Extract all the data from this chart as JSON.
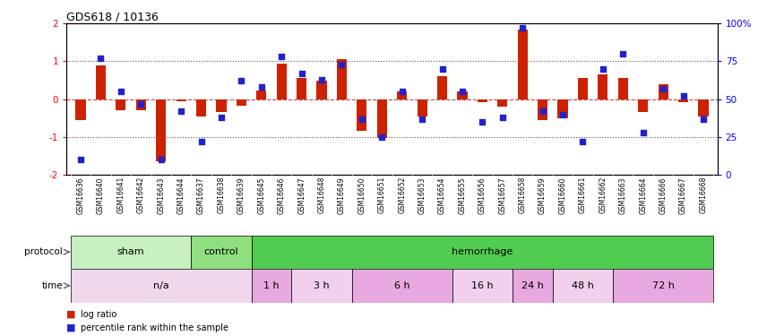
{
  "title": "GDS618 / 10136",
  "samples": [
    "GSM16636",
    "GSM16640",
    "GSM16641",
    "GSM16642",
    "GSM16643",
    "GSM16644",
    "GSM16637",
    "GSM16638",
    "GSM16639",
    "GSM16645",
    "GSM16646",
    "GSM16647",
    "GSM16648",
    "GSM16649",
    "GSM16650",
    "GSM16651",
    "GSM16652",
    "GSM16653",
    "GSM16654",
    "GSM16655",
    "GSM16656",
    "GSM16657",
    "GSM16658",
    "GSM16659",
    "GSM16660",
    "GSM16661",
    "GSM16662",
    "GSM16663",
    "GSM16664",
    "GSM16666",
    "GSM16667",
    "GSM16668"
  ],
  "log_ratio": [
    -0.55,
    0.9,
    -0.3,
    -0.3,
    -1.65,
    -0.05,
    -0.45,
    -0.35,
    -0.18,
    0.22,
    0.95,
    0.55,
    0.5,
    1.05,
    -0.85,
    -1.02,
    0.2,
    -0.45,
    0.6,
    0.2,
    -0.08,
    -0.2,
    1.85,
    -0.55,
    -0.5,
    0.55,
    0.65,
    0.55,
    -0.35,
    0.4,
    -0.08,
    -0.45
  ],
  "percentile": [
    10,
    77,
    55,
    47,
    10,
    42,
    22,
    38,
    62,
    58,
    78,
    67,
    63,
    73,
    37,
    25,
    55,
    37,
    70,
    55,
    35,
    38,
    97,
    42,
    40,
    22,
    70,
    80,
    28,
    57,
    52,
    37
  ],
  "protocol_groups": [
    {
      "label": "sham",
      "start": 0,
      "end": 6,
      "color": "#c8f0c0"
    },
    {
      "label": "control",
      "start": 6,
      "end": 9,
      "color": "#90e080"
    },
    {
      "label": "hemorrhage",
      "start": 9,
      "end": 32,
      "color": "#50cc50"
    }
  ],
  "time_groups": [
    {
      "label": "n/a",
      "start": 0,
      "end": 9,
      "color": "#f0d8ec"
    },
    {
      "label": "1 h",
      "start": 9,
      "end": 11,
      "color": "#e8a8e0"
    },
    {
      "label": "3 h",
      "start": 11,
      "end": 14,
      "color": "#f0d0ec"
    },
    {
      "label": "6 h",
      "start": 14,
      "end": 19,
      "color": "#e8a8e0"
    },
    {
      "label": "16 h",
      "start": 19,
      "end": 22,
      "color": "#f0d0ec"
    },
    {
      "label": "24 h",
      "start": 22,
      "end": 24,
      "color": "#e8a8e0"
    },
    {
      "label": "48 h",
      "start": 24,
      "end": 27,
      "color": "#f0d0ec"
    },
    {
      "label": "72 h",
      "start": 27,
      "end": 32,
      "color": "#e8a8e0"
    }
  ],
  "bar_color": "#cc2200",
  "dot_color": "#2222cc",
  "zero_line_color": "#cc4444",
  "dotted_line_color": "#555555",
  "ylim": [
    -2,
    2
  ],
  "y2lim": [
    0,
    100
  ],
  "yticks": [
    -2,
    -1,
    0,
    1,
    2
  ],
  "y2ticks": [
    0,
    25,
    50,
    75,
    100
  ],
  "bar_width": 0.5,
  "dot_size": 22,
  "xtick_bg": "#d8d8d8",
  "legend_items": [
    {
      "label": "log ratio",
      "color": "#cc2200"
    },
    {
      "label": "percentile rank within the sample",
      "color": "#2222cc"
    }
  ]
}
